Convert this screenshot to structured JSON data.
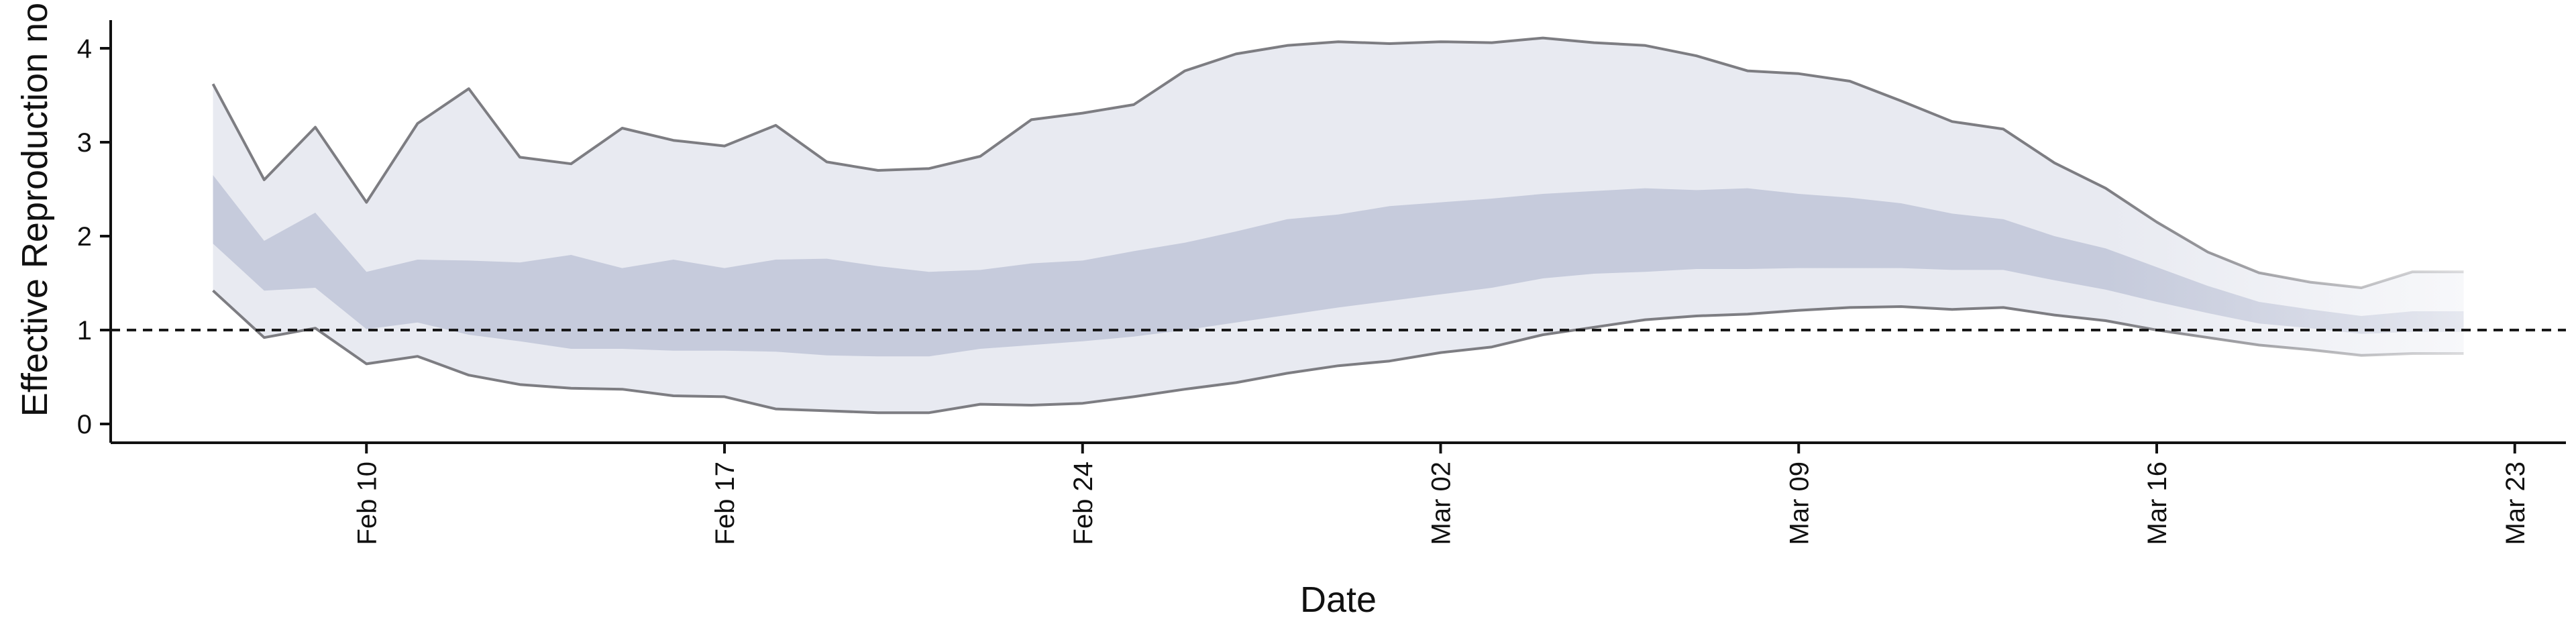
{
  "chart_data": {
    "type": "area",
    "title": "",
    "xlabel": "Date",
    "ylabel": "Effective Reproduction no.",
    "x_tick_labels": [
      "Feb 10",
      "Feb 17",
      "Feb 24",
      "Mar 02",
      "Mar 09",
      "Mar 16",
      "Mar 23"
    ],
    "y_tick_labels": [
      "0",
      "1",
      "2",
      "3",
      "4"
    ],
    "xlim": [
      "2020-02-05",
      "2020-03-24"
    ],
    "ylim": [
      -0.2,
      4.3
    ],
    "reference_line": 1,
    "grid": false,
    "x": [
      "2020-02-07",
      "2020-02-08",
      "2020-02-09",
      "2020-02-10",
      "2020-02-11",
      "2020-02-12",
      "2020-02-13",
      "2020-02-14",
      "2020-02-15",
      "2020-02-16",
      "2020-02-17",
      "2020-02-18",
      "2020-02-19",
      "2020-02-20",
      "2020-02-21",
      "2020-02-22",
      "2020-02-23",
      "2020-02-24",
      "2020-02-25",
      "2020-02-26",
      "2020-02-27",
      "2020-02-28",
      "2020-02-29",
      "2020-03-01",
      "2020-03-02",
      "2020-03-03",
      "2020-03-04",
      "2020-03-05",
      "2020-03-06",
      "2020-03-07",
      "2020-03-08",
      "2020-03-09",
      "2020-03-10",
      "2020-03-11",
      "2020-03-12",
      "2020-03-13",
      "2020-03-14",
      "2020-03-15",
      "2020-03-16",
      "2020-03-17",
      "2020-03-18",
      "2020-03-19",
      "2020-03-20",
      "2020-03-21",
      "2020-03-22"
    ],
    "series": [
      {
        "values_upper_90": [
          3.62,
          2.6,
          3.16,
          2.36,
          3.2,
          3.57,
          2.84,
          2.77,
          3.15,
          3.02,
          2.96,
          3.18,
          2.79,
          2.7,
          2.72,
          2.85,
          3.24,
          3.31,
          3.4,
          3.76,
          3.94,
          4.03,
          4.07,
          4.05,
          4.07,
          4.06,
          4.11,
          4.06,
          4.03,
          3.92,
          3.76,
          3.73,
          3.65,
          3.44,
          3.22,
          3.14,
          2.78,
          2.51,
          2.15,
          1.83,
          1.61,
          1.51,
          1.45,
          1.62,
          1.62
        ],
        "values_upper_50": [
          2.65,
          1.95,
          2.25,
          1.62,
          1.75,
          1.74,
          1.72,
          1.8,
          1.66,
          1.75,
          1.66,
          1.75,
          1.76,
          1.68,
          1.62,
          1.64,
          1.71,
          1.74,
          1.84,
          1.93,
          2.05,
          2.18,
          2.23,
          2.32,
          2.36,
          2.4,
          2.45,
          2.48,
          2.51,
          2.49,
          2.51,
          2.45,
          2.41,
          2.35,
          2.24,
          2.18,
          2.0,
          1.87,
          1.67,
          1.47,
          1.3,
          1.22,
          1.15,
          1.2,
          1.2
        ],
        "values_lower_50": [
          1.92,
          1.42,
          1.45,
          1.01,
          1.08,
          0.95,
          0.88,
          0.8,
          0.8,
          0.78,
          0.78,
          0.77,
          0.73,
          0.72,
          0.72,
          0.8,
          0.84,
          0.88,
          0.93,
          1.0,
          1.08,
          1.16,
          1.24,
          1.31,
          1.38,
          1.45,
          1.55,
          1.6,
          1.62,
          1.65,
          1.65,
          1.66,
          1.66,
          1.66,
          1.64,
          1.64,
          1.53,
          1.43,
          1.3,
          1.18,
          1.07,
          1.02,
          0.96,
          0.98,
          0.98
        ],
        "values_lower_90": [
          1.42,
          0.92,
          1.02,
          0.64,
          0.72,
          0.52,
          0.42,
          0.38,
          0.37,
          0.3,
          0.29,
          0.16,
          0.14,
          0.12,
          0.12,
          0.21,
          0.2,
          0.22,
          0.29,
          0.37,
          0.44,
          0.54,
          0.62,
          0.67,
          0.76,
          0.82,
          0.95,
          1.03,
          1.11,
          1.15,
          1.17,
          1.21,
          1.24,
          1.25,
          1.22,
          1.24,
          1.16,
          1.1,
          1.0,
          0.92,
          0.84,
          0.79,
          0.73,
          0.75,
          0.75
        ]
      }
    ],
    "colors": {
      "band_90": "#e8eaf1",
      "band_50": "#c6cbdc",
      "bound_line": "#7d7d82",
      "reference_line": "#1a1a1a",
      "axis": "#111111"
    }
  }
}
